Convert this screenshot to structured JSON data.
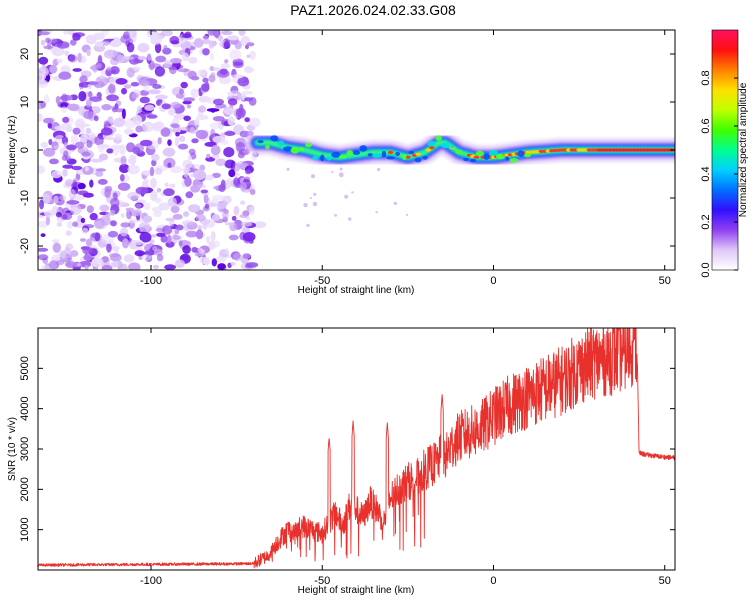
{
  "title": "PAZ1.2026.024.02.33.G08",
  "chart_data": [
    {
      "type": "heatmap",
      "name": "spectrogram",
      "xlabel": "Height of straight line (km)",
      "ylabel": "Frequency (Hz)",
      "xlim": [
        -133,
        53
      ],
      "ylim": [
        -25,
        25
      ],
      "xticks": [
        -100,
        -50,
        0,
        50
      ],
      "yticks": [
        -20,
        -10,
        0,
        10,
        20
      ],
      "noise_region": {
        "x_range": [
          -133,
          -70
        ],
        "y_range": [
          -25,
          25
        ]
      },
      "signal_ridge": {
        "x": [
          -69,
          -65,
          -60,
          -55,
          -50,
          -45,
          -40,
          -35,
          -30,
          -25,
          -20,
          -16,
          -14,
          -10,
          -5,
          0,
          5,
          10,
          20,
          30,
          40,
          53
        ],
        "y": [
          1.5,
          1.5,
          0.5,
          0,
          -1,
          -1.5,
          -1,
          -0.5,
          -0.5,
          -1.5,
          -0.5,
          1.5,
          1.5,
          -0.5,
          -1.5,
          -1.5,
          -1,
          -0.5,
          0,
          0,
          0,
          0
        ]
      },
      "colorbar": {
        "label": "Normalized spectral amplitude",
        "range": [
          0,
          1
        ],
        "ticks": [
          0.0,
          0.2,
          0.4,
          0.6,
          0.8
        ],
        "tick_labels": [
          "0.0",
          "0.2",
          "0.4",
          "0.6",
          "0.8"
        ],
        "colors": [
          "#ffffff",
          "#e0c8f8",
          "#9040f0",
          "#3010ff",
          "#0070ff",
          "#00d0ff",
          "#00ff90",
          "#40ff00",
          "#c0ff00",
          "#ffe000",
          "#ff8000",
          "#ff1010",
          "#ff1060"
        ]
      }
    },
    {
      "type": "line",
      "name": "snr",
      "xlabel": "Height of straight line (km)",
      "ylabel": "SNR (10 * v/v)",
      "xlim": [
        -133,
        53
      ],
      "ylim": [
        0,
        6000
      ],
      "xticks": [
        -100,
        -50,
        0,
        50
      ],
      "yticks": [
        1000,
        2000,
        3000,
        4000,
        5000
      ],
      "series": [
        {
          "name": "SNR",
          "color": "#e8312c",
          "x": [
            -133,
            -120,
            -100,
            -80,
            -70,
            -66,
            -63,
            -60,
            -58,
            -56,
            -53,
            -50,
            -48,
            -46,
            -44,
            -42,
            -40,
            -38,
            -36,
            -34,
            -32,
            -30,
            -28,
            -25,
            -22,
            -20,
            -18,
            -16,
            -15,
            -14,
            -12,
            -10,
            -7,
            -4,
            0,
            5,
            10,
            15,
            20,
            25,
            30,
            35,
            38,
            40,
            41.5,
            42,
            42.5,
            45,
            50,
            53
          ],
          "y": [
            120,
            130,
            140,
            150,
            160,
            350,
            700,
            1000,
            900,
            1100,
            1000,
            900,
            1200,
            1400,
            1100,
            1600,
            1500,
            1300,
            1700,
            1500,
            1200,
            1800,
            2000,
            2200,
            2300,
            2500,
            2600,
            2700,
            2900,
            2800,
            3100,
            3300,
            3400,
            3500,
            3800,
            4100,
            4300,
            4500,
            4700,
            5000,
            5200,
            5300,
            5400,
            5500,
            5600,
            5300,
            2900,
            2850,
            2800,
            2780
          ]
        }
      ],
      "spikes": [
        {
          "x": -48,
          "y": 3300
        },
        {
          "x": -41,
          "y": 3700
        },
        {
          "x": -31,
          "y": 3650
        },
        {
          "x": -15,
          "y": 4350
        },
        {
          "x": 41,
          "y": 5850
        }
      ]
    }
  ]
}
